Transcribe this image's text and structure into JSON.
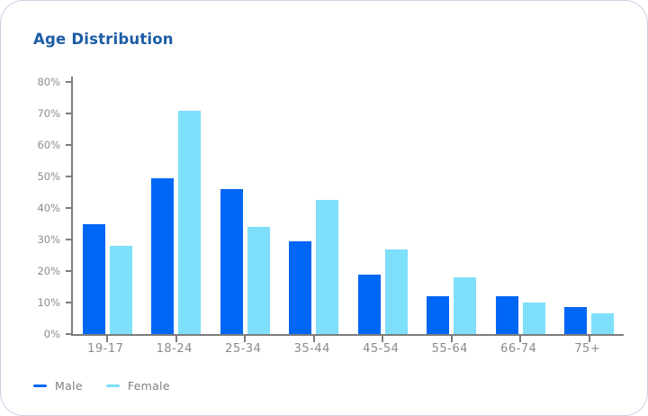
{
  "header": {
    "title": "Age Distribution"
  },
  "colors": {
    "male": "#0066F5",
    "female": "#7EDFFB",
    "title": "#1C5CA5",
    "axis": "#7D7D7D",
    "tick_label": "#8C8C8C",
    "x_label": "#8A8A8A",
    "legend_text": "#7E7E7E",
    "card_border": "#CBD3E2"
  },
  "legend": {
    "items": [
      {
        "label": "Male",
        "color": "#0066F5"
      },
      {
        "label": "Female",
        "color": "#7EDFFB"
      }
    ]
  },
  "chart_data": {
    "type": "bar",
    "title": "Age Distribution",
    "categories": [
      "19-17",
      "18-24",
      "25-34",
      "35-44",
      "45-54",
      "55-64",
      "66-74",
      "75+"
    ],
    "series": [
      {
        "name": "Male",
        "color": "#0066F5",
        "values": [
          35,
          49.5,
          46,
          29.5,
          19,
          12,
          12,
          8.5
        ]
      },
      {
        "name": "Female",
        "color": "#7EDFFB",
        "values": [
          28,
          71,
          34,
          42.5,
          27,
          18,
          10,
          6.5
        ]
      }
    ],
    "xlabel": "",
    "ylabel": "",
    "ylim": [
      0,
      80
    ],
    "ytick_step": 10,
    "yticks": [
      "0%",
      "10%",
      "20%",
      "30%",
      "40%",
      "50%",
      "60%",
      "70%",
      "80%"
    ],
    "grid": false,
    "legend_position": "bottom-left"
  }
}
